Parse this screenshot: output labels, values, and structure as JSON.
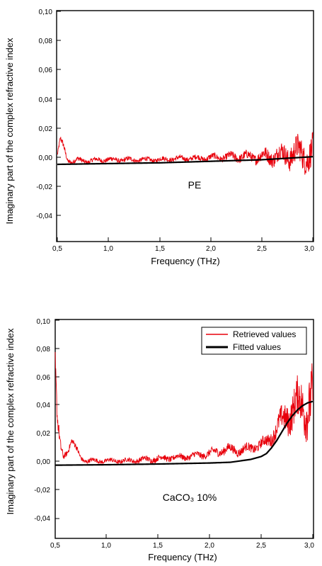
{
  "chart_data": [
    {
      "type": "line",
      "xlabel": "Frequency (THz)",
      "ylabel": "Imaginary part of the complex refractive index",
      "xlim": [
        0.5,
        3.0
      ],
      "ylim": [
        -0.05,
        0.1
      ],
      "x_ticks": [
        "0,5",
        "1,0",
        "1,5",
        "2,0",
        "2,5",
        "3,0"
      ],
      "y_ticks": [
        "-0,04",
        "-0,02",
        "0,00",
        "0,02",
        "0,04",
        "0,06",
        "0,08",
        "0,10"
      ],
      "annotation": "PE",
      "legend": null,
      "series": [
        {
          "color": "#e8000b",
          "style": "noisy",
          "x": [
            0.5,
            0.53,
            0.56,
            0.6,
            0.65,
            0.7,
            0.8,
            0.9,
            1.0,
            1.1,
            1.2,
            1.3,
            1.4,
            1.5,
            1.6,
            1.7,
            1.8,
            1.9,
            2.0,
            2.1,
            2.2,
            2.3,
            2.4,
            2.5,
            2.6,
            2.7,
            2.8,
            2.9,
            3.0
          ],
          "values": [
            0.006,
            0.016,
            0.012,
            0.003,
            0.0015,
            0.003,
            0.002,
            0.003,
            0.003,
            0.003,
            0.003,
            0.003,
            0.003,
            0.003,
            0.0035,
            0.0038,
            0.004,
            0.004,
            0.0045,
            0.0045,
            0.005,
            0.005,
            0.005,
            0.005,
            0.0055,
            0.006,
            0.007,
            0.007,
            0.007
          ],
          "noise": [
            0.001,
            0.002,
            0.002,
            0.0015,
            0.0015,
            0.0015,
            0.0015,
            0.0015,
            0.0015,
            0.0015,
            0.0015,
            0.0015,
            0.0015,
            0.0015,
            0.0015,
            0.0015,
            0.0015,
            0.0018,
            0.002,
            0.002,
            0.0025,
            0.003,
            0.003,
            0.004,
            0.005,
            0.006,
            0.008,
            0.009,
            0.01
          ]
        },
        {
          "color": "#000000",
          "style": "smooth",
          "x": [
            0.5,
            1.0,
            1.5,
            2.0,
            2.5,
            3.0
          ],
          "values": [
            0.0,
            0.0005,
            0.001,
            0.002,
            0.003,
            0.005
          ]
        }
      ]
    },
    {
      "type": "line",
      "xlabel": "Frequency (THz)",
      "ylabel": "Imaginary part of the complex refractive index",
      "xlim": [
        0.5,
        3.0
      ],
      "ylim": [
        -0.05,
        0.1
      ],
      "x_ticks": [
        "0,5",
        "1,0",
        "1,5",
        "2,0",
        "2,5",
        "3,0"
      ],
      "y_ticks": [
        "-0,04",
        "-0,02",
        "0,00",
        "0,02",
        "0,04",
        "0,06",
        "0,08",
        "0,10"
      ],
      "annotation": "CaCO₃ 10%",
      "legend": [
        "Retrieved values",
        "Fitted values"
      ],
      "series": [
        {
          "name": "Retrieved values",
          "color": "#e8000b",
          "style": "noisy",
          "x": [
            0.5,
            0.52,
            0.55,
            0.58,
            0.62,
            0.66,
            0.7,
            0.75,
            0.8,
            0.9,
            1.0,
            1.2,
            1.4,
            1.6,
            1.8,
            2.0,
            2.1,
            2.2,
            2.3,
            2.4,
            2.5,
            2.55,
            2.6,
            2.65,
            2.7,
            2.75,
            2.8,
            2.85,
            2.9,
            2.95,
            3.0
          ],
          "values": [
            0.07,
            0.03,
            0.012,
            0.006,
            0.01,
            0.017,
            0.012,
            0.005,
            0.003,
            0.003,
            0.003,
            0.003,
            0.004,
            0.005,
            0.006,
            0.008,
            0.01,
            0.011,
            0.01,
            0.012,
            0.014,
            0.016,
            0.02,
            0.025,
            0.03,
            0.035,
            0.038,
            0.04,
            0.042,
            0.044,
            0.045
          ],
          "noise": [
            0.008,
            0.006,
            0.004,
            0.002,
            0.002,
            0.002,
            0.002,
            0.0015,
            0.0015,
            0.0015,
            0.0015,
            0.0015,
            0.002,
            0.002,
            0.002,
            0.0025,
            0.003,
            0.003,
            0.003,
            0.003,
            0.0035,
            0.004,
            0.005,
            0.006,
            0.008,
            0.01,
            0.012,
            0.014,
            0.016,
            0.018,
            0.02
          ]
        },
        {
          "name": "Fitted values",
          "color": "#000000",
          "style": "smooth",
          "x": [
            0.5,
            1.0,
            1.5,
            2.0,
            2.2,
            2.4,
            2.5,
            2.55,
            2.6,
            2.65,
            2.7,
            2.75,
            2.8,
            2.85,
            2.9,
            2.95,
            3.0
          ],
          "values": [
            0.0,
            0.0003,
            0.0008,
            0.0015,
            0.002,
            0.004,
            0.006,
            0.008,
            0.012,
            0.017,
            0.023,
            0.029,
            0.034,
            0.038,
            0.041,
            0.043,
            0.044
          ]
        }
      ]
    }
  ]
}
